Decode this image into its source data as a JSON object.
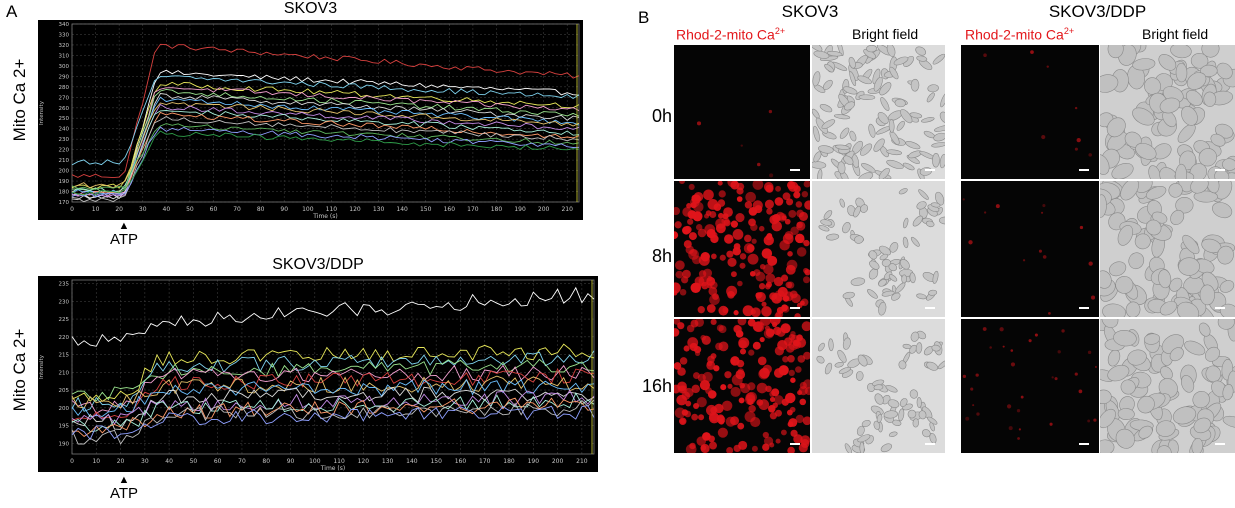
{
  "panel_a_label": "A",
  "panel_b_label": "B",
  "colors": {
    "chart_bg": "#000000",
    "grid": "#3a3a3a",
    "axis_text": "#c8c8c8",
    "red_label": "#e3171b"
  },
  "chart_data": [
    {
      "type": "line",
      "title": "SKOV3",
      "ylabel": "Mito Ca 2+",
      "xlabel": "Time (s)",
      "inner_ylabel": "Intensity",
      "annotation": "ATP",
      "annotation_x": 22,
      "xlim": [
        0,
        215
      ],
      "ylim": [
        170,
        340
      ],
      "x_ticks": [
        "0",
        "10",
        "20",
        "30",
        "40",
        "50",
        "60",
        "70",
        "80",
        "90",
        "100",
        "110",
        "120",
        "130",
        "140",
        "150",
        "160",
        "170",
        "180",
        "190",
        "200",
        "210"
      ],
      "y_ticks": [
        "170",
        "180",
        "190",
        "200",
        "210",
        "220",
        "230",
        "240",
        "250",
        "260",
        "270",
        "280",
        "290",
        "300",
        "310",
        "320",
        "330",
        "340"
      ],
      "grid": true,
      "series": [
        {
          "color": "#d8413f",
          "baseline": 195,
          "plateau": 320,
          "end": 290
        },
        {
          "color": "#ffffff",
          "baseline": 176,
          "plateau": 294,
          "end": 274
        },
        {
          "color": "#7fd3ef",
          "baseline": 208,
          "plateau": 290,
          "end": 270
        },
        {
          "color": "#e8e85a",
          "baseline": 185,
          "plateau": 283,
          "end": 262
        },
        {
          "color": "#f2a0d0",
          "baseline": 178,
          "plateau": 280,
          "end": 258
        },
        {
          "color": "#9ce68f",
          "baseline": 182,
          "plateau": 276,
          "end": 253
        },
        {
          "color": "#d9d9d9",
          "baseline": 174,
          "plateau": 272,
          "end": 250
        },
        {
          "color": "#6cc0ff",
          "baseline": 180,
          "plateau": 268,
          "end": 246
        },
        {
          "color": "#e6c26b",
          "baseline": 186,
          "plateau": 265,
          "end": 244
        },
        {
          "color": "#c58be6",
          "baseline": 176,
          "plateau": 261,
          "end": 240
        },
        {
          "color": "#a6f0d9",
          "baseline": 181,
          "plateau": 258,
          "end": 236
        },
        {
          "color": "#ff9b6a",
          "baseline": 178,
          "plateau": 254,
          "end": 232
        },
        {
          "color": "#bfbfbf",
          "baseline": 172,
          "plateau": 250,
          "end": 230
        },
        {
          "color": "#5fb85f",
          "baseline": 184,
          "plateau": 244,
          "end": 226
        },
        {
          "color": "#8fa0ff",
          "baseline": 176,
          "plateau": 240,
          "end": 224
        },
        {
          "color": "#2f9e4a",
          "baseline": 179,
          "plateau": 236,
          "end": 220
        }
      ]
    },
    {
      "type": "line",
      "title": "SKOV3/DDP",
      "ylabel": "Mito Ca 2+",
      "xlabel": "Time (s)",
      "inner_ylabel": "Intensity",
      "annotation": "ATP",
      "annotation_x": 22,
      "xlim": [
        0,
        215
      ],
      "ylim": [
        187,
        236
      ],
      "x_ticks": [
        "0",
        "10",
        "20",
        "30",
        "40",
        "50",
        "60",
        "70",
        "80",
        "90",
        "100",
        "110",
        "120",
        "130",
        "140",
        "150",
        "160",
        "170",
        "180",
        "190",
        "200",
        "210"
      ],
      "y_ticks": [
        "190",
        "195",
        "200",
        "205",
        "210",
        "215",
        "220",
        "225",
        "230",
        "235"
      ],
      "grid": true,
      "series": [
        {
          "color": "#ffffff",
          "baseline": 219,
          "plateau": 224,
          "end": 232
        },
        {
          "color": "#e8e85a",
          "baseline": 203,
          "plateau": 214,
          "end": 216
        },
        {
          "color": "#7fd3ef",
          "baseline": 201,
          "plateau": 212,
          "end": 214
        },
        {
          "color": "#9ce68f",
          "baseline": 204,
          "plateau": 210,
          "end": 212
        },
        {
          "color": "#f2a0d0",
          "baseline": 200,
          "plateau": 209,
          "end": 210
        },
        {
          "color": "#d8413f",
          "baseline": 198,
          "plateau": 207,
          "end": 209
        },
        {
          "color": "#e6c26b",
          "baseline": 202,
          "plateau": 206,
          "end": 207
        },
        {
          "color": "#6cc0ff",
          "baseline": 199,
          "plateau": 205,
          "end": 206
        },
        {
          "color": "#d9d9d9",
          "baseline": 196,
          "plateau": 203,
          "end": 204
        },
        {
          "color": "#c58be6",
          "baseline": 197,
          "plateau": 201,
          "end": 203
        },
        {
          "color": "#a6f0d9",
          "baseline": 195,
          "plateau": 200,
          "end": 202
        },
        {
          "color": "#ff9b6a",
          "baseline": 194,
          "plateau": 199,
          "end": 201
        },
        {
          "color": "#bfbfbf",
          "baseline": 192,
          "plateau": 198,
          "end": 200
        },
        {
          "color": "#8fa0ff",
          "baseline": 193,
          "plateau": 197,
          "end": 199
        }
      ]
    }
  ],
  "panel_b": {
    "groups": [
      {
        "title": "SKOV3",
        "red_column": "Rhod-2-mito Ca",
        "red_superscript": "2+",
        "bf_column": "Bright field"
      },
      {
        "title": "SKOV3/DDP",
        "red_column": "Rhod-2-mito Ca",
        "red_superscript": "2+",
        "bf_column": "Bright field"
      }
    ],
    "rows": [
      "0h",
      "8h",
      "16h"
    ],
    "fluorescence_levels": [
      [
        0.02,
        0.75,
        0.7
      ],
      [
        0.03,
        0.05,
        0.12
      ]
    ],
    "cell_shapes": [
      "flattened-dense",
      "clustered-sparse",
      "rounded-sparse"
    ]
  }
}
